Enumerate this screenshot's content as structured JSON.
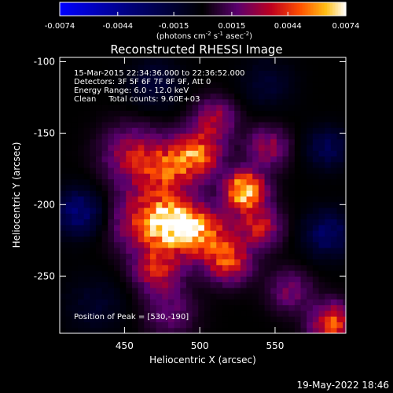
{
  "chart_data": {
    "type": "heatmap",
    "title": "Reconstructed RHESSI Image",
    "xlabel": "Heliocentric X (arcsec)",
    "ylabel": "Heliocentric Y (arcsec)",
    "x_range": [
      407,
      597
    ],
    "y_range": [
      -290,
      -97
    ],
    "x_ticks": [
      450,
      500,
      550
    ],
    "y_ticks": [
      -100,
      -150,
      -200,
      -250
    ],
    "colorbar": {
      "range": [
        -0.0074,
        0.0074
      ],
      "ticks": [
        -0.0074,
        -0.0044,
        -0.0015,
        0.0015,
        0.0044,
        0.0074
      ],
      "tick_labels": [
        "-0.0074",
        "-0.0044",
        "-0.0015",
        "0.0015",
        "0.0044",
        "0.0074"
      ],
      "units_prefix": "(photons cm",
      "units_exp1": "-2",
      "units_mid": " s",
      "units_exp2": "-1",
      "units_mid2": " asec",
      "units_exp3": "-2",
      "units_suffix": ")",
      "colormap": "rhessi-fire"
    },
    "annotations": [
      "15-Mar-2015 22:34:36.000 to 22:36:52.000",
      "Detectors: 3F 5F 6F 7F 8F 9F, Att 0",
      "Energy Range: 6.0 - 12.0 keV",
      "Clean     Total counts: 9.60E+03"
    ],
    "peak_label": "Position of Peak = [530,-190]",
    "peak": {
      "x": 530,
      "y": -190
    },
    "sources": [
      {
        "x": 530,
        "y": -190,
        "value": 0.0074,
        "sigma": 9
      },
      {
        "x": 484,
        "y": -213,
        "value": 0.006,
        "sigma": 12
      },
      {
        "x": 498,
        "y": -165,
        "value": 0.0052,
        "sigma": 11
      },
      {
        "x": 465,
        "y": -210,
        "value": 0.004,
        "sigma": 16
      },
      {
        "x": 505,
        "y": -222,
        "value": 0.0044,
        "sigma": 13
      },
      {
        "x": 520,
        "y": -240,
        "value": 0.004,
        "sigma": 10
      },
      {
        "x": 472,
        "y": -245,
        "value": 0.0036,
        "sigma": 11
      },
      {
        "x": 456,
        "y": -165,
        "value": 0.0032,
        "sigma": 14
      },
      {
        "x": 478,
        "y": -175,
        "value": 0.0036,
        "sigma": 12
      },
      {
        "x": 540,
        "y": -215,
        "value": 0.0036,
        "sigma": 10
      },
      {
        "x": 545,
        "y": -160,
        "value": 0.0028,
        "sigma": 10
      },
      {
        "x": 510,
        "y": -140,
        "value": 0.003,
        "sigma": 10
      },
      {
        "x": 588,
        "y": -283,
        "value": 0.0048,
        "sigma": 10
      },
      {
        "x": 480,
        "y": -275,
        "value": 0.0018,
        "sigma": 12
      },
      {
        "x": 560,
        "y": -260,
        "value": 0.0022,
        "sigma": 10
      },
      {
        "x": 420,
        "y": -205,
        "value": -0.0036,
        "sigma": 11
      },
      {
        "x": 585,
        "y": -220,
        "value": -0.003,
        "sigma": 11
      },
      {
        "x": 585,
        "y": -160,
        "value": -0.0024,
        "sigma": 10
      },
      {
        "x": 470,
        "y": -115,
        "value": -0.0016,
        "sigma": 12
      },
      {
        "x": 545,
        "y": -115,
        "value": -0.0014,
        "sigma": 12
      },
      {
        "x": 430,
        "y": -270,
        "value": -0.0012,
        "sigma": 14
      }
    ]
  },
  "footer": {
    "timestamp": "19-May-2022 18:46"
  }
}
